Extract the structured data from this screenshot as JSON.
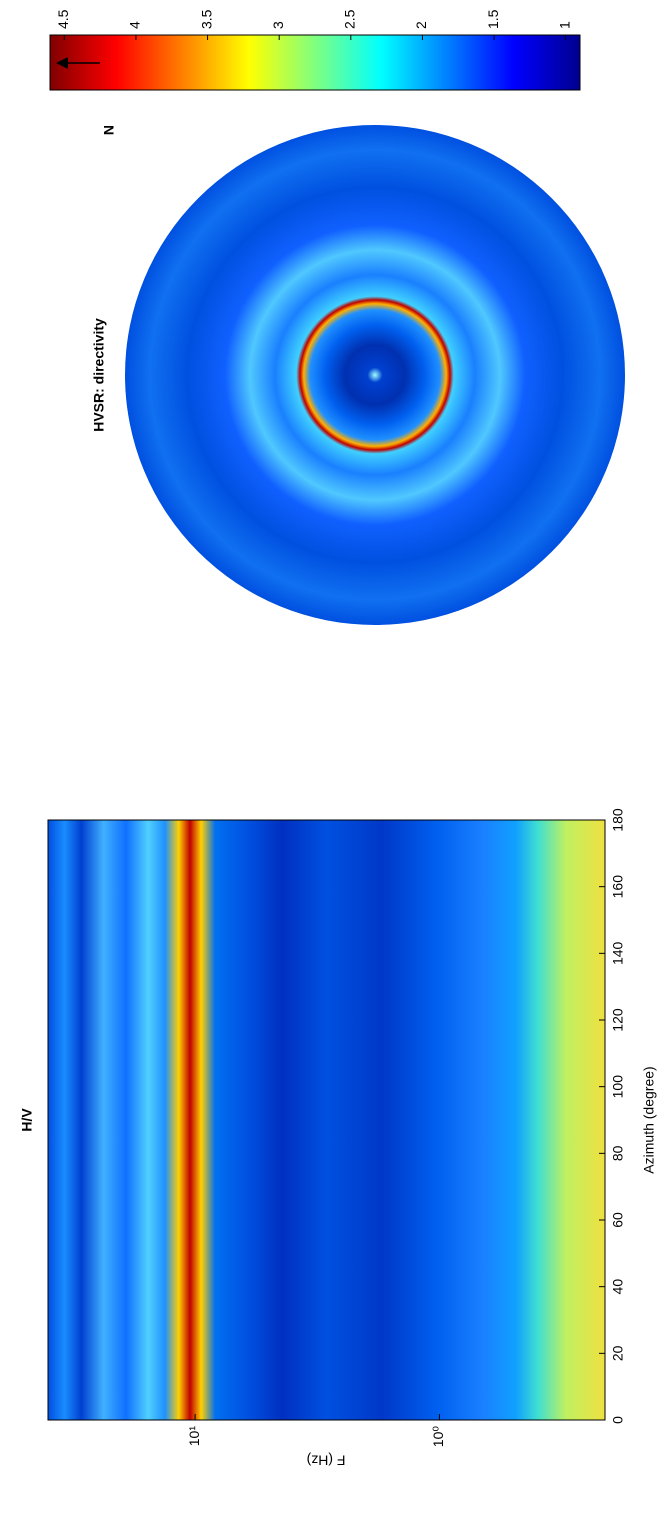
{
  "chart_data": [
    {
      "type": "heatmap",
      "title": "H/V",
      "x_label": "Azimuth (degree)",
      "y_label": "F (Hz)",
      "xlim": [
        0,
        180
      ],
      "xticks": [
        0,
        20,
        40,
        60,
        80,
        100,
        120,
        140,
        160,
        180
      ],
      "ylim": [
        0.21,
        40
      ],
      "y_scale": "log",
      "yticks": [
        {
          "value": 1,
          "label": "10⁰"
        },
        {
          "value": 10,
          "label": "10¹"
        }
      ]
    },
    {
      "type": "polar",
      "title": "HVSR: directivity",
      "north_label": "N",
      "clim": [
        0.9,
        4.6
      ],
      "cticks": [
        1,
        1.5,
        2,
        2.5,
        3,
        3.5,
        4,
        4.5
      ]
    }
  ]
}
